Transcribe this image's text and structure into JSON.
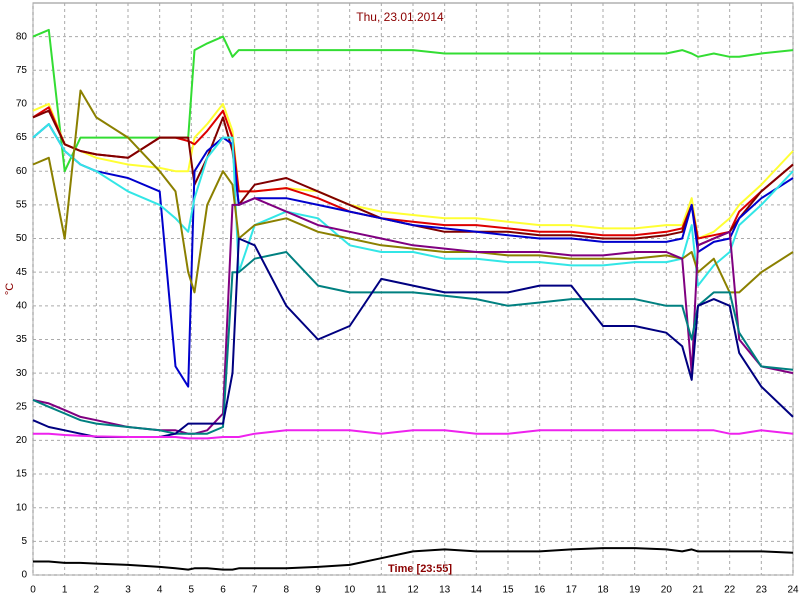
{
  "chart_data": {
    "type": "line",
    "title": "Thu, 23.01.2014",
    "x_label": "Time [23:55]",
    "y_label": "°C",
    "x": [
      0,
      0.5,
      1,
      1.5,
      2,
      3,
      4,
      4.5,
      4.9,
      5.1,
      5.5,
      6,
      6.3,
      6.5,
      7,
      8,
      9,
      10,
      11,
      12,
      13,
      14,
      15,
      16,
      17,
      18,
      19,
      20,
      20.5,
      20.8,
      21,
      21.5,
      22,
      22.3,
      23,
      24
    ],
    "series": [
      {
        "color": "#33dd33",
        "values": [
          80,
          81,
          60,
          65,
          65,
          65,
          65,
          65,
          65,
          78,
          79,
          80,
          77,
          78,
          78,
          78,
          78,
          78,
          78,
          78,
          77.5,
          77.5,
          77.5,
          77.5,
          77.5,
          77.5,
          77.5,
          77.5,
          78,
          77.5,
          77,
          77.5,
          77,
          77,
          77.5,
          78
        ]
      },
      {
        "color": "#ffff33",
        "values": [
          69,
          70,
          64,
          63,
          62,
          61,
          60.5,
          60,
          60,
          65,
          67,
          70,
          66,
          57,
          57,
          57.5,
          57,
          55,
          54,
          53.5,
          53,
          53,
          52.5,
          52,
          52,
          51.5,
          51.5,
          52,
          52,
          56,
          50,
          51,
          53,
          55,
          58,
          63
        ]
      },
      {
        "color": "#dd0000",
        "values": [
          68,
          69.5,
          64,
          63,
          62.5,
          62,
          65,
          65,
          64.5,
          64,
          66,
          69,
          65,
          57,
          57,
          57.5,
          56,
          54,
          53,
          52.5,
          52,
          52,
          51.5,
          51,
          51,
          50.5,
          50.5,
          51,
          51.5,
          55,
          50,
          50.5,
          51,
          54,
          57,
          61
        ]
      },
      {
        "color": "#800000",
        "values": [
          68,
          69,
          64,
          63,
          62.5,
          62,
          65,
          65,
          65,
          58,
          62,
          68,
          63,
          55,
          58,
          59,
          57,
          55,
          53,
          52,
          51,
          51,
          51,
          50.5,
          50.5,
          50,
          50,
          50.5,
          51,
          55,
          49,
          50,
          51,
          53,
          57,
          61
        ]
      },
      {
        "color": "#0000cc",
        "values": [
          65,
          67,
          63,
          61,
          60,
          59,
          57,
          31,
          28,
          60,
          63,
          65,
          64,
          55,
          56,
          56,
          55,
          54,
          53,
          52,
          51.5,
          51,
          50.5,
          50,
          50,
          49.5,
          49.5,
          49.5,
          50,
          55,
          48,
          49.5,
          50,
          53,
          56,
          59
        ]
      },
      {
        "color": "#33e6e6",
        "values": [
          65,
          67,
          63,
          61,
          60,
          57,
          55,
          53,
          51,
          56,
          62,
          65,
          65,
          45,
          52,
          54,
          53,
          49,
          48,
          48,
          47,
          47,
          46.5,
          46.5,
          46,
          46,
          46.5,
          46.5,
          47,
          52,
          43,
          46,
          48,
          52,
          55,
          60
        ]
      },
      {
        "color": "#8b8000",
        "values": [
          61,
          62,
          50,
          72,
          68,
          65,
          60,
          57,
          45,
          42,
          55,
          60,
          58,
          50,
          52,
          53,
          51,
          50,
          49,
          48.5,
          48,
          48,
          47.5,
          47.5,
          47,
          47,
          47,
          47.5,
          47,
          48,
          45,
          47,
          42,
          42,
          45,
          48
        ]
      },
      {
        "color": "#800080",
        "values": [
          26,
          25.5,
          24.5,
          23.5,
          23,
          22,
          21.5,
          21.5,
          21,
          21,
          21.5,
          24,
          55,
          55,
          56,
          54,
          52,
          51,
          50,
          49,
          48.5,
          48,
          48,
          48,
          47.5,
          47.5,
          48,
          48,
          47,
          30,
          49,
          50,
          51,
          35,
          31,
          30
        ]
      },
      {
        "color": "#008080",
        "values": [
          26,
          25,
          24,
          23,
          22.5,
          22,
          21.5,
          21,
          21,
          21,
          21,
          22,
          45,
          45,
          47,
          48,
          43,
          42,
          42,
          42,
          41.5,
          41,
          40,
          40.5,
          41,
          41,
          41,
          40,
          40,
          35,
          40,
          42,
          42,
          36,
          31,
          30.5
        ]
      },
      {
        "color": "#000080",
        "values": [
          23,
          22,
          21.5,
          21,
          20.5,
          20.5,
          20.5,
          21,
          22.5,
          22.5,
          22.5,
          22.5,
          30,
          50,
          49,
          40,
          35,
          37,
          44,
          43,
          42,
          42,
          42,
          43,
          43,
          37,
          37,
          36,
          34,
          29,
          40,
          41,
          40,
          33,
          28,
          23.5
        ]
      },
      {
        "color": "#ee22ee",
        "values": [
          21,
          21,
          20.8,
          20.7,
          20.6,
          20.5,
          20.5,
          20.5,
          20.3,
          20.3,
          20.3,
          20.5,
          20.5,
          20.5,
          21,
          21.5,
          21.5,
          21.5,
          21,
          21.5,
          21.5,
          21,
          21,
          21.5,
          21.5,
          21.5,
          21.5,
          21.5,
          21.5,
          21.5,
          21.5,
          21.5,
          21,
          21,
          21.5,
          21
        ]
      },
      {
        "color": "#000000",
        "values": [
          2,
          2,
          1.8,
          1.8,
          1.7,
          1.5,
          1.2,
          1,
          0.8,
          1,
          1,
          0.8,
          0.8,
          1,
          1,
          1,
          1.2,
          1.5,
          2.5,
          3.5,
          3.8,
          3.5,
          3.5,
          3.5,
          3.8,
          4,
          4,
          3.8,
          3.5,
          3.8,
          3.5,
          3.5,
          3.5,
          3.5,
          3.5,
          3.3
        ]
      }
    ],
    "xlim": [
      0,
      24
    ],
    "xticks": [
      0,
      1,
      2,
      3,
      4,
      5,
      6,
      7,
      8,
      9,
      10,
      11,
      12,
      13,
      14,
      15,
      16,
      17,
      18,
      19,
      20,
      21,
      22,
      23,
      24
    ],
    "ylim": [
      0,
      85
    ],
    "yticks": [
      0,
      5,
      10,
      15,
      20,
      25,
      30,
      35,
      40,
      45,
      50,
      55,
      60,
      65,
      70,
      75,
      80
    ],
    "grid": true
  }
}
